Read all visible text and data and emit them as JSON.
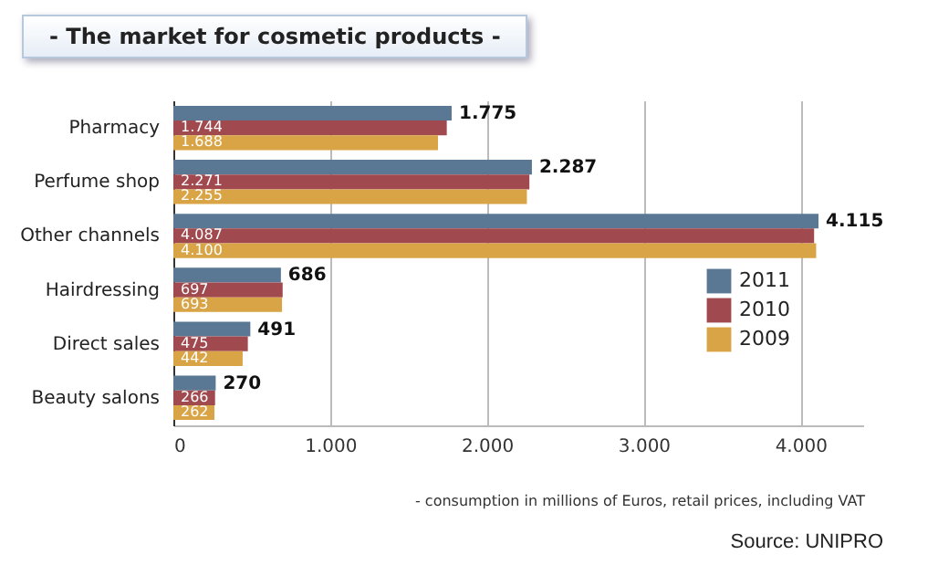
{
  "chart_data": {
    "type": "bar",
    "orientation": "horizontal",
    "title": "- The market for cosmetic products -",
    "categories": [
      "Pharmacy",
      "Perfume shop",
      "Other channels",
      "Hairdressing",
      "Direct sales",
      "Beauty salons"
    ],
    "series": [
      {
        "name": "2011",
        "color": "#5a7894",
        "values": [
          1775,
          2287,
          4115,
          686,
          491,
          270
        ],
        "value_labels": [
          "1.775",
          "2.287",
          "4.115",
          "686",
          "491",
          "270"
        ]
      },
      {
        "name": "2010",
        "color": "#a0494f",
        "values": [
          1744,
          2271,
          4087,
          697,
          475,
          266
        ],
        "value_labels": [
          "1.744",
          "2.271",
          "4.087",
          "697",
          "475",
          "266"
        ]
      },
      {
        "name": "2009",
        "color": "#d9a445",
        "values": [
          1688,
          2255,
          4100,
          693,
          442,
          262
        ],
        "value_labels": [
          "1.688",
          "2.255",
          "4.100",
          "693",
          "442",
          "262"
        ]
      }
    ],
    "xlim": [
      0,
      4400
    ],
    "xticks": [
      0,
      {
        "value": 1000,
        "label": "1.000"
      },
      {
        "value": 2000,
        "label": "2.000"
      },
      {
        "value": 3000,
        "label": "3.000"
      },
      {
        "value": 4000,
        "label": "4.000"
      }
    ],
    "grid": "x",
    "legend": "bottom right",
    "annotations": [
      "- consumption in millions of Euros, retail prices, including VAT",
      "Source: UNIPRO"
    ]
  }
}
